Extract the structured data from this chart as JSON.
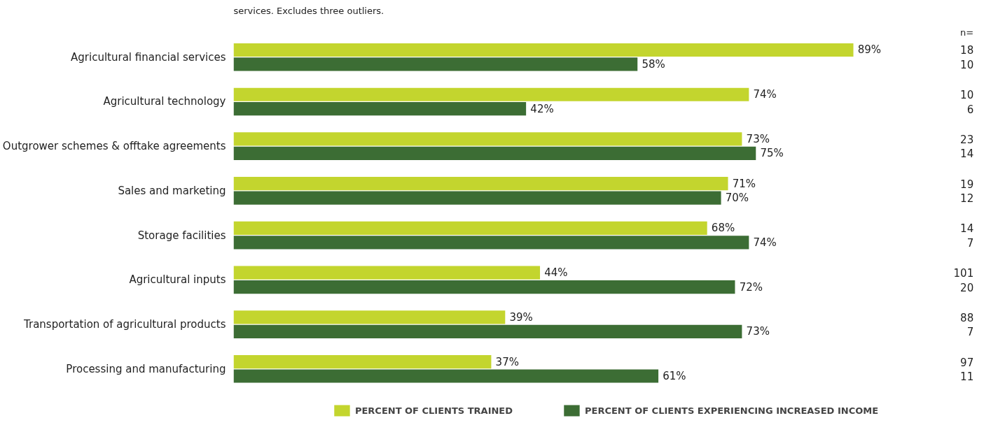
{
  "chart_data": {
    "type": "bar",
    "orientation": "horizontal",
    "subtitle": "services. Excludes three outliers.",
    "categories": [
      "Agricultural financial services",
      "Agricultural technology",
      "Outgrower schemes & offtake agreements",
      "Sales and marketing",
      "Storage facilities",
      "Agricultural inputs",
      "Transportation of agricultural products",
      "Processing and manufacturing"
    ],
    "series": [
      {
        "name": "PERCENT OF CLIENTS TRAINED",
        "color": "#c3d52e",
        "values": [
          89,
          74,
          73,
          71,
          68,
          44,
          39,
          37
        ],
        "value_labels": [
          "89%",
          "74%",
          "73%",
          "71%",
          "68%",
          "44%",
          "39%",
          "37%"
        ]
      },
      {
        "name": "PERCENT OF CLIENTS EXPERIENCING INCREASED INCOME",
        "color": "#3c6d34",
        "values": [
          58,
          42,
          75,
          70,
          74,
          72,
          73,
          61
        ],
        "value_labels": [
          "58%",
          "42%",
          "75%",
          "70%",
          "74%",
          "72%",
          "73%",
          "61%"
        ]
      }
    ],
    "annotations": [
      "n=",
      "18",
      "10",
      "10",
      "6",
      "23",
      "14",
      "19",
      "12",
      "14",
      "7",
      "101",
      "20",
      "88",
      "7",
      "97",
      "11"
    ],
    "grid": false,
    "legend": "bottom"
  }
}
